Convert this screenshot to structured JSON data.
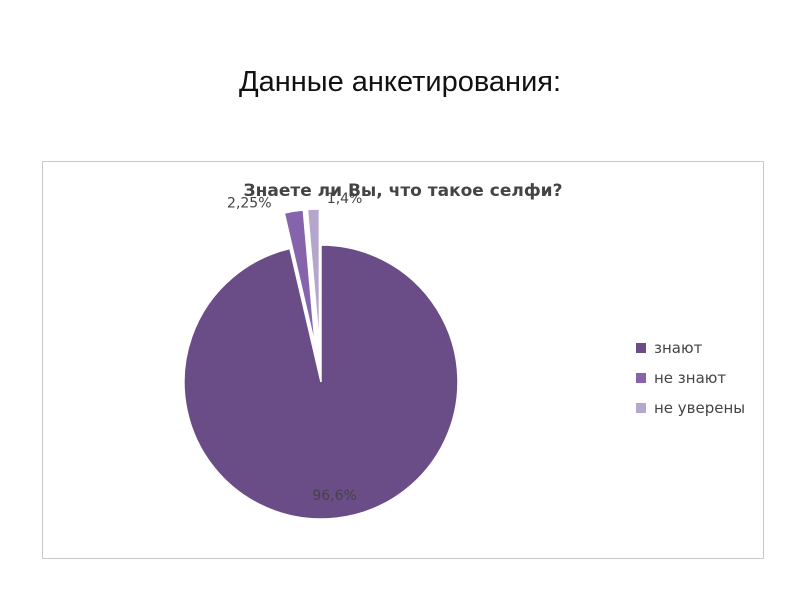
{
  "slide": {
    "title": "Данные анкетирования:"
  },
  "chart_data": {
    "type": "pie",
    "title": "Знаете ли Вы, что такое селфи?",
    "slices": [
      {
        "label": "знают",
        "value": 96.6,
        "value_label": "96,6%",
        "color": "#6a4d87",
        "exploded": false
      },
      {
        "label": "не знают",
        "value": 2.25,
        "value_label": "2,25%",
        "color": "#8564ac",
        "exploded": true
      },
      {
        "label": "не уверены",
        "value": 1.4,
        "value_label": "1,4%",
        "color": "#b5a6cb",
        "exploded": true
      }
    ],
    "legend": {
      "position": "right",
      "items": [
        "знают",
        "не знают",
        "не уверены"
      ]
    }
  }
}
